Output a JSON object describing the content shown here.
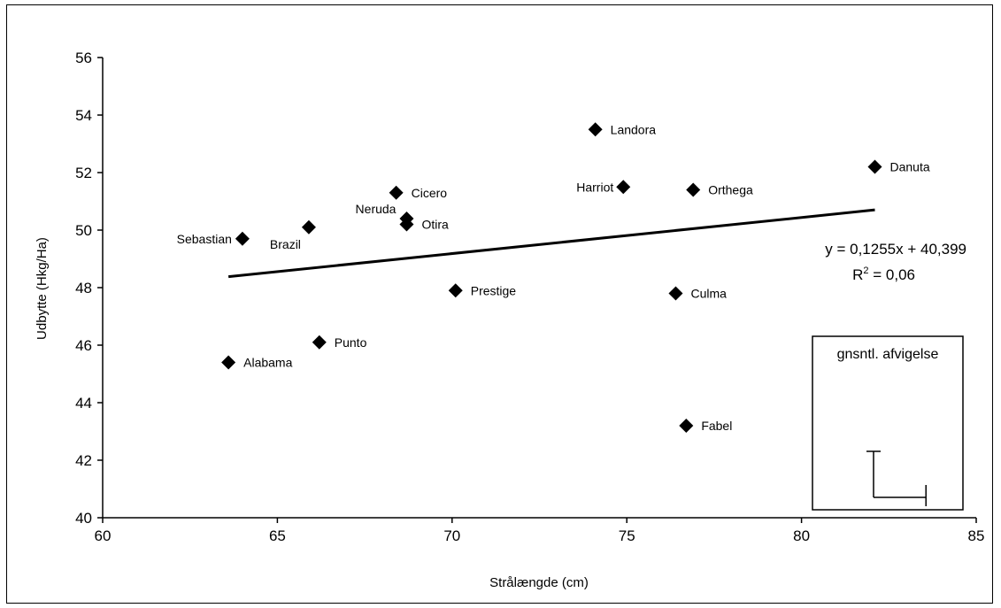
{
  "chart_data": {
    "type": "scatter",
    "title": "",
    "xlabel": "Strålængde (cm)",
    "ylabel": "Udbytte (Hkg/Ha)",
    "xlim": [
      60,
      85
    ],
    "ylim": [
      40,
      56
    ],
    "xticks": [
      60,
      65,
      70,
      75,
      80,
      85
    ],
    "yticks": [
      40,
      42,
      44,
      46,
      48,
      50,
      52,
      54,
      56
    ],
    "grid": false,
    "marker": "diamond",
    "marker_color": "#000000",
    "points": [
      {
        "label": "Landora",
        "x": 74.1,
        "y": 53.5
      },
      {
        "label": "Danuta",
        "x": 82.1,
        "y": 52.2
      },
      {
        "label": "Harriot",
        "x": 74.9,
        "y": 51.5
      },
      {
        "label": "Orthega",
        "x": 76.9,
        "y": 51.4
      },
      {
        "label": "Cicero",
        "x": 68.4,
        "y": 51.3
      },
      {
        "label": "Neruda",
        "x": 68.7,
        "y": 50.4
      },
      {
        "label": "Otira",
        "x": 68.7,
        "y": 50.2
      },
      {
        "label": "Brazil",
        "x": 65.9,
        "y": 50.1
      },
      {
        "label": "Sebastian",
        "x": 64.0,
        "y": 49.7
      },
      {
        "label": "Prestige",
        "x": 70.1,
        "y": 47.9
      },
      {
        "label": "Culma",
        "x": 76.4,
        "y": 47.8
      },
      {
        "label": "Punto",
        "x": 66.2,
        "y": 46.1
      },
      {
        "label": "Alabama",
        "x": 63.6,
        "y": 45.4
      },
      {
        "label": "Fabel",
        "x": 76.7,
        "y": 43.2
      }
    ],
    "trendline": {
      "type": "linear",
      "slope": 0.1255,
      "intercept": 40.399,
      "x_range": [
        63.6,
        82.1
      ],
      "equation_text": "y = 0,1255x + 40,399",
      "r2_prefix": "R",
      "r2_exponent": "2",
      "r2_suffix": " = 0,06"
    },
    "deviation_box": {
      "label": "gnsntl. afvigelse",
      "vertical": 1.6,
      "horizontal": 1.5
    }
  }
}
